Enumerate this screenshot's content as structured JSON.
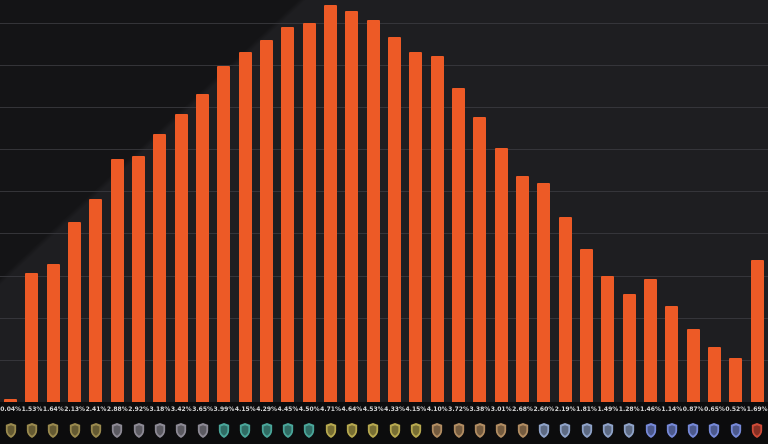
{
  "chart_data": {
    "type": "bar",
    "title": "",
    "bar_color": "#ed5a26",
    "background_color": "#1e1e21",
    "gridline_color": "#3a3a3e",
    "label_color": "#d6d6d6",
    "grid": "horizontal lines every 0.5%",
    "ylim": [
      0,
      4.77
    ],
    "legend_position": "none",
    "xlabel": "",
    "ylabel": "",
    "categories": [
      "Copper V",
      "Copper IV",
      "Copper III",
      "Copper II",
      "Copper I",
      "Bronze V",
      "Bronze IV",
      "Bronze III",
      "Bronze II",
      "Bronze I",
      "Silver V",
      "Silver IV",
      "Silver III",
      "Silver II",
      "Silver I",
      "Gold V",
      "Gold IV",
      "Gold III",
      "Gold II",
      "Gold I",
      "Platinum V",
      "Platinum IV",
      "Platinum III",
      "Platinum II",
      "Platinum I",
      "Emerald V",
      "Emerald IV",
      "Emerald III",
      "Emerald II",
      "Emerald I",
      "Diamond V",
      "Diamond IV",
      "Diamond III",
      "Diamond II",
      "Diamond I",
      "Champions"
    ],
    "values": [
      0.04,
      1.53,
      1.64,
      2.13,
      2.41,
      2.88,
      2.92,
      3.18,
      3.42,
      3.65,
      3.99,
      4.15,
      4.29,
      4.45,
      4.5,
      4.71,
      4.64,
      4.53,
      4.33,
      4.15,
      4.1,
      3.72,
      3.38,
      3.01,
      2.68,
      2.6,
      2.19,
      1.81,
      1.49,
      1.28,
      1.46,
      1.14,
      0.87,
      0.65,
      0.52,
      1.69
    ],
    "labels": [
      "0.04%",
      "1.53%",
      "1.64%",
      "2.13%",
      "2.41%",
      "2.88%",
      "2.92%",
      "3.18%",
      "3.42%",
      "3.65%",
      "3.99%",
      "4.15%",
      "4.29%",
      "4.45%",
      "4.50%",
      "4.71%",
      "4.64%",
      "4.53%",
      "4.33%",
      "4.15%",
      "4.10%",
      "3.72%",
      "3.38%",
      "3.01%",
      "2.68%",
      "2.60%",
      "2.19%",
      "1.81%",
      "1.49%",
      "1.28%",
      "1.46%",
      "1.14%",
      "0.87%",
      "0.65%",
      "0.52%",
      "1.69%"
    ],
    "x_axis_icons": [
      {
        "tier": "copper",
        "icon": "copper-rank-icon",
        "color": "#9a8a4e"
      },
      {
        "tier": "bronze",
        "icon": "bronze-rank-icon",
        "color": "#8d8a95"
      },
      {
        "tier": "silver",
        "icon": "silver-rank-icon",
        "color": "#4aa69a"
      },
      {
        "tier": "gold",
        "icon": "gold-rank-icon",
        "color": "#b7a94f"
      },
      {
        "tier": "platinum",
        "icon": "platinum-rank-icon",
        "color": "#b28d62"
      },
      {
        "tier": "emerald",
        "icon": "emerald-rank-icon",
        "color": "#8fa3c9"
      },
      {
        "tier": "diamond",
        "icon": "diamond-rank-icon",
        "color": "#7689d8"
      },
      {
        "tier": "champions",
        "icon": "champions-rank-icon",
        "color": "#cf4b38"
      }
    ]
  }
}
